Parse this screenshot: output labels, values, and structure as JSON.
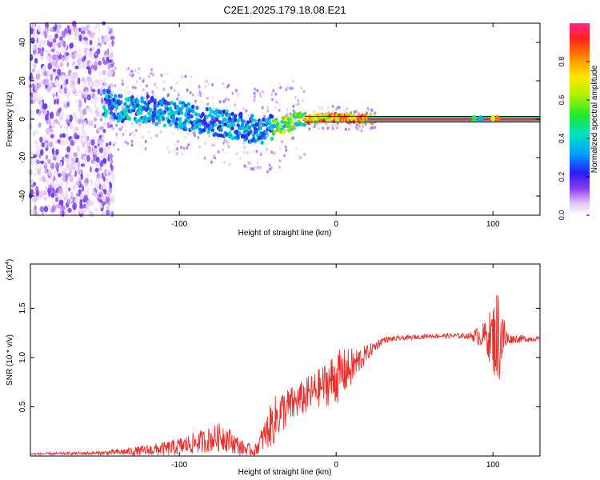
{
  "title": "C2E1.2025.179.18.08.E21",
  "chart_data": [
    {
      "type": "heatmap",
      "xlabel": "Height of straight line (km)",
      "ylabel": "Frequency (Hz)",
      "xlim": [
        -195,
        130
      ],
      "ylim": [
        -50,
        50
      ],
      "xticks": [
        -100,
        0,
        100
      ],
      "yticks": [
        -40,
        -20,
        0,
        20,
        40
      ],
      "colorbar": {
        "label": "Normalized spectral amplitude",
        "range": [
          0,
          1
        ],
        "ticks": [
          "0.0",
          "0.2",
          "0.4",
          "0.6",
          "0.8"
        ]
      },
      "trace": {
        "x": [
          -150,
          -140,
          -120,
          -100,
          -80,
          -65,
          -55,
          -45,
          -35,
          -25,
          -15,
          -5,
          0,
          10,
          20,
          130
        ],
        "freq": [
          10,
          6,
          5,
          2,
          -1,
          -3,
          -5,
          -6,
          -3,
          -1,
          0,
          1,
          1,
          0,
          0,
          0
        ]
      },
      "noise_region": {
        "x_from": -195,
        "x_to": -145
      }
    },
    {
      "type": "line",
      "xlabel": "Height of straight line (km)",
      "ylabel": "SNR (10 * v/v)",
      "y_multiplier": "(x10",
      "y_multiplier_exp": "4",
      "exp_close": ")",
      "xlim": [
        -195,
        130
      ],
      "ylim": [
        0,
        1.95
      ],
      "xticks": [
        -100,
        0,
        100
      ],
      "yticks": [
        0.5,
        1.0,
        1.5
      ],
      "ytick_labels": [
        "0.5",
        "1.0",
        "1.5"
      ],
      "series": [
        {
          "color": "#e8302c",
          "envelope": {
            "x": [
              -195,
              -150,
              -125,
              -105,
              -85,
              -72,
              -60,
              -52,
              -40,
              -35,
              -25,
              -10,
              0,
              10,
              20,
              30,
              60,
              85,
              95,
              100,
              103,
              106,
              110,
              130
            ],
            "base": [
              0.02,
              0.03,
              0.05,
              0.08,
              0.15,
              0.2,
              0.08,
              0.05,
              0.35,
              0.45,
              0.55,
              0.7,
              0.8,
              0.9,
              1.05,
              1.18,
              1.22,
              1.22,
              1.22,
              1.2,
              1.2,
              1.2,
              1.19,
              1.19
            ],
            "amp": [
              0.01,
              0.02,
              0.05,
              0.08,
              0.12,
              0.15,
              0.08,
              0.05,
              0.25,
              0.22,
              0.18,
              0.2,
              0.28,
              0.2,
              0.08,
              0.03,
              0.02,
              0.03,
              0.15,
              0.35,
              0.55,
              0.3,
              0.05,
              0.02
            ]
          }
        }
      ]
    }
  ]
}
